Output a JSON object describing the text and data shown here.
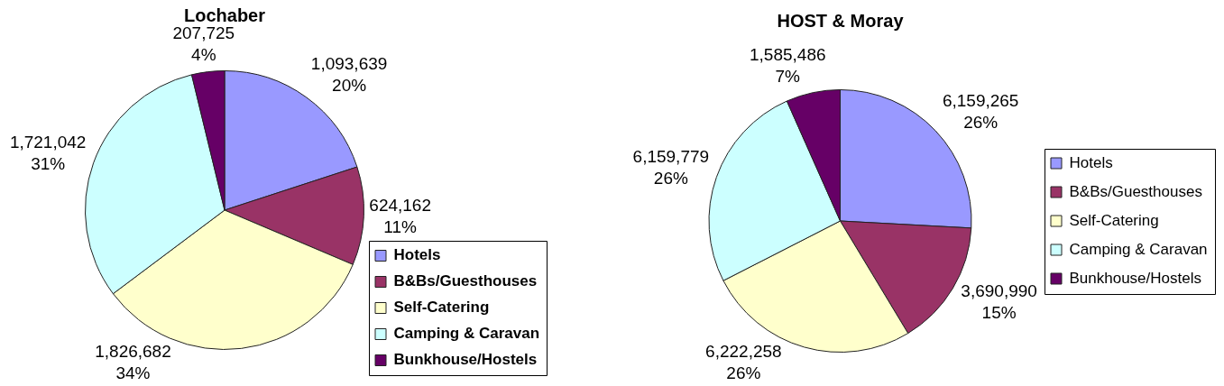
{
  "chart_data": [
    {
      "type": "pie",
      "title": "Lochaber",
      "categories": [
        "Hotels",
        "B&Bs/Guesthouses",
        "Self-Catering",
        "Camping & Caravan",
        "Bunkhouse/Hostels"
      ],
      "values": [
        1093639,
        624162,
        1826682,
        1721042,
        207725
      ],
      "colors": [
        "#9999ff",
        "#993366",
        "#ffffcc",
        "#ccffff",
        "#660066"
      ],
      "value_labels": [
        "1,093,639\n20%",
        "624,162\n11%",
        "1,826,682\n34%",
        "1,721,042\n31%",
        "207,725\n4%"
      ],
      "legend": "bottom right"
    },
    {
      "type": "pie",
      "title": "HOST & Moray",
      "categories": [
        "Hotels",
        "B&Bs/Guesthouses",
        "Self-Catering",
        "Camping & Caravan",
        "Bunkhouse/Hostels"
      ],
      "values": [
        6159265,
        3690990,
        6222258,
        6159779,
        1585486
      ],
      "colors": [
        "#9999ff",
        "#993366",
        "#ffffcc",
        "#ccffff",
        "#660066"
      ],
      "value_labels": [
        "6,159,265\n26%",
        "3,690,990\n15%",
        "6,222,258\n26%",
        "6,159,779\n26%",
        "1,585,486\n7%"
      ],
      "legend": "right"
    }
  ]
}
